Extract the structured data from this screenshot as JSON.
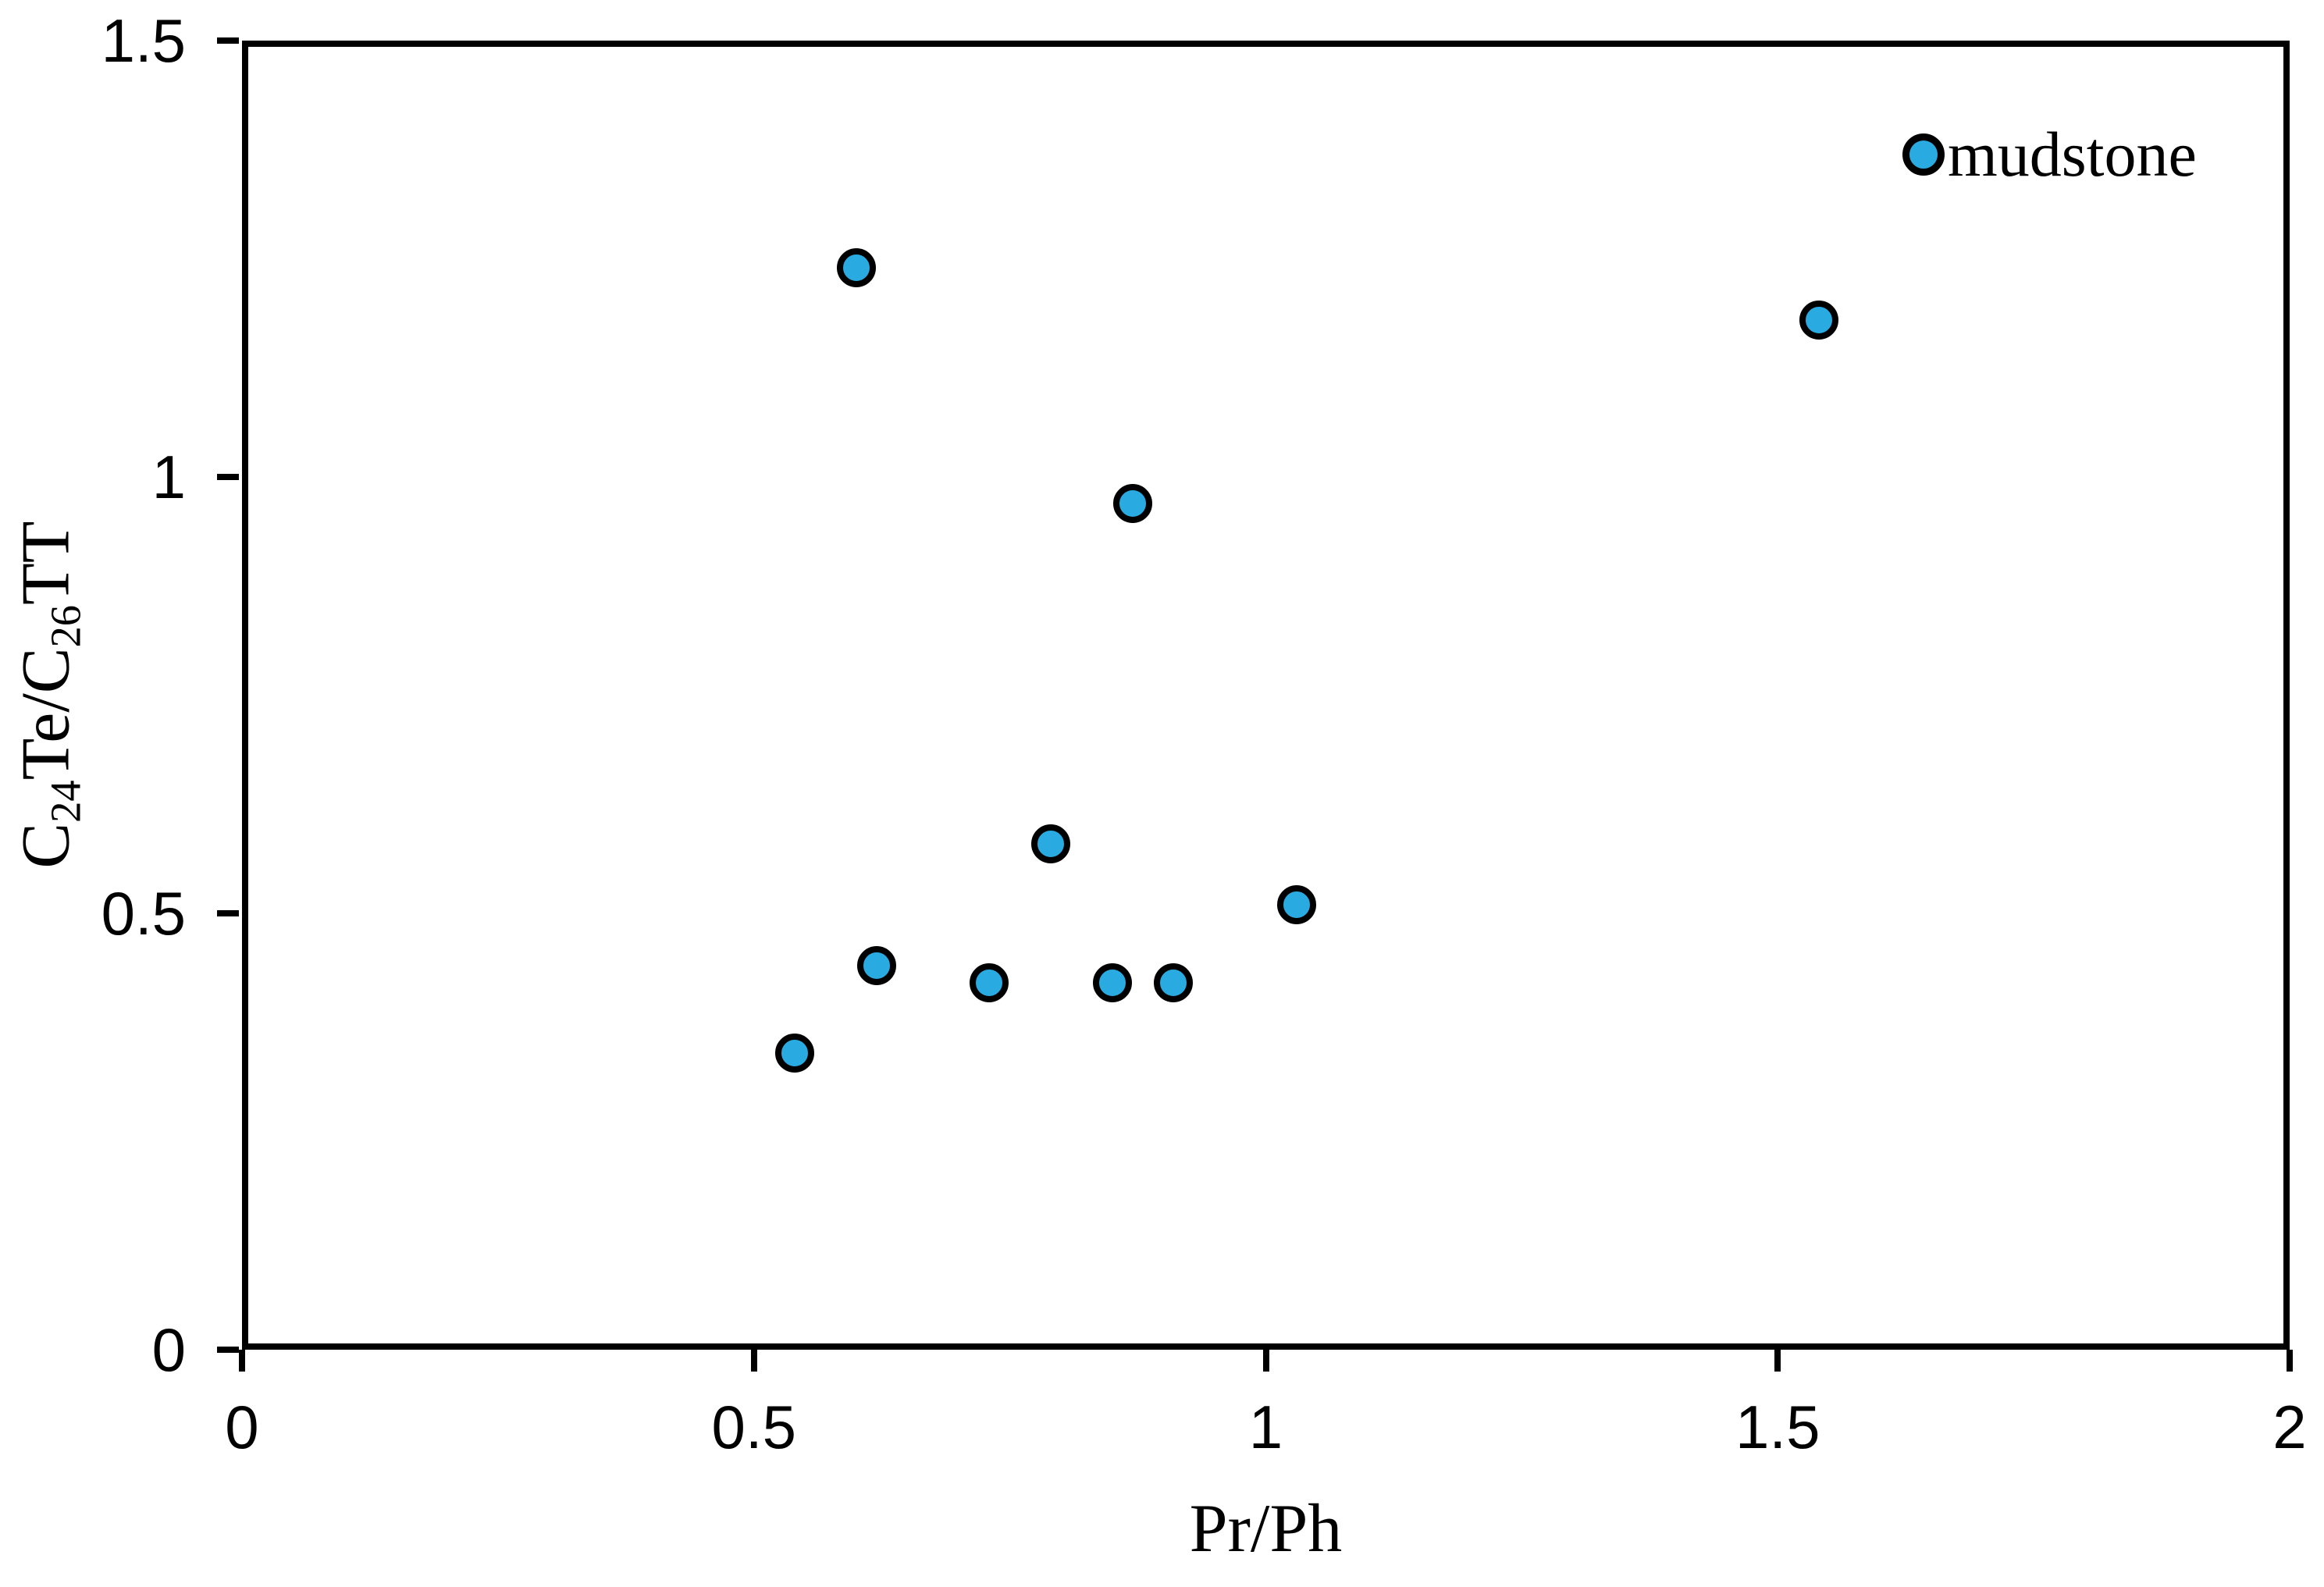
{
  "figure": {
    "background_color": "#ffffff",
    "axis_color": "#000000",
    "text_color": "#000000"
  },
  "chart_data": {
    "type": "scatter",
    "title": "",
    "xlabel": "Pr/Ph",
    "ylabel": "C24Te/C26TT",
    "ylabel_parts": [
      {
        "text": "C"
      },
      {
        "sub": "24"
      },
      {
        "text": "Te/C"
      },
      {
        "sub": "26"
      },
      {
        "text": "TT"
      }
    ],
    "xlim": [
      0,
      2
    ],
    "ylim": [
      0,
      1.5
    ],
    "x_ticks": [
      0,
      0.5,
      1,
      1.5,
      2
    ],
    "x_tick_labels": [
      "0",
      "0.5",
      "1",
      "1.5",
      "2"
    ],
    "y_ticks": [
      0,
      0.5,
      1,
      1.5
    ],
    "y_tick_labels": [
      "0",
      "0.5",
      "1",
      "1.5"
    ],
    "grid": false,
    "legend": {
      "position": "top-right-inside",
      "entries": [
        {
          "label": "mudstone",
          "marker": "circle",
          "fill": "#29abe2",
          "stroke": "#000000"
        }
      ]
    },
    "series": [
      {
        "name": "mudstone",
        "marker": {
          "shape": "circle",
          "fill": "#29abe2",
          "stroke": "#000000"
        },
        "points": [
          {
            "x": 0.6,
            "y": 1.24
          },
          {
            "x": 1.54,
            "y": 1.18
          },
          {
            "x": 0.87,
            "y": 0.97
          },
          {
            "x": 0.79,
            "y": 0.58
          },
          {
            "x": 1.03,
            "y": 0.51
          },
          {
            "x": 0.62,
            "y": 0.44
          },
          {
            "x": 0.73,
            "y": 0.42
          },
          {
            "x": 0.85,
            "y": 0.42
          },
          {
            "x": 0.91,
            "y": 0.42
          },
          {
            "x": 0.54,
            "y": 0.34
          }
        ]
      }
    ]
  }
}
